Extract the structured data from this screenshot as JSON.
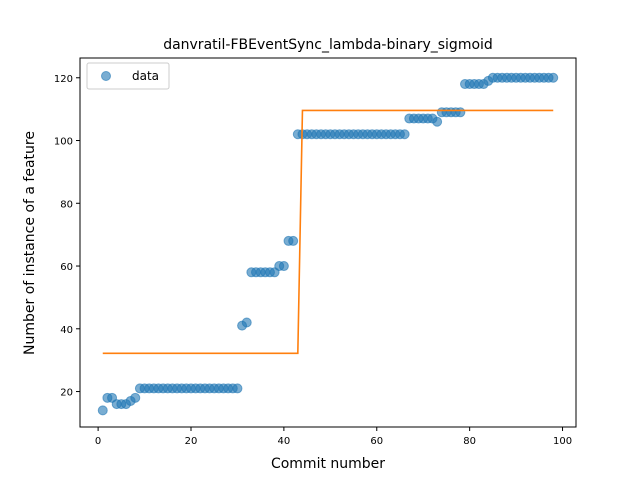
{
  "chart_data": {
    "type": "scatter",
    "title": "danvratil-FBEventSync_lambda-binary_sigmoid",
    "xlabel": "Commit number",
    "ylabel": "Number of instance of a feature",
    "xlim": [
      -3.9,
      102.9
    ],
    "ylim": [
      8.7,
      126.3
    ],
    "xticks": [
      0,
      20,
      40,
      60,
      80,
      100
    ],
    "yticks": [
      20,
      40,
      60,
      80,
      100,
      120
    ],
    "legend": {
      "position": "top-left",
      "entries": [
        "data"
      ]
    },
    "series": [
      {
        "name": "data",
        "kind": "scatter",
        "color": "#1f77b4",
        "x": [
          1,
          2,
          3,
          4,
          5,
          6,
          7,
          8,
          9,
          10,
          11,
          12,
          13,
          14,
          15,
          16,
          17,
          18,
          19,
          20,
          21,
          22,
          23,
          24,
          25,
          26,
          27,
          28,
          29,
          30,
          31,
          32,
          33,
          34,
          35,
          36,
          37,
          38,
          39,
          40,
          41,
          42,
          43,
          44,
          45,
          46,
          47,
          48,
          49,
          50,
          51,
          52,
          53,
          54,
          55,
          56,
          57,
          58,
          59,
          60,
          61,
          62,
          63,
          64,
          65,
          66,
          67,
          68,
          69,
          70,
          71,
          72,
          73,
          74,
          75,
          76,
          77,
          78,
          79,
          80,
          81,
          82,
          83,
          84,
          85,
          86,
          87,
          88,
          89,
          90,
          91,
          92,
          93,
          94,
          95,
          96,
          97,
          98
        ],
        "y": [
          14,
          18,
          18,
          16,
          16,
          16,
          17,
          18,
          21,
          21,
          21,
          21,
          21,
          21,
          21,
          21,
          21,
          21,
          21,
          21,
          21,
          21,
          21,
          21,
          21,
          21,
          21,
          21,
          21,
          21,
          41,
          42,
          58,
          58,
          58,
          58,
          58,
          58,
          60,
          60,
          68,
          68,
          102,
          102,
          102,
          102,
          102,
          102,
          102,
          102,
          102,
          102,
          102,
          102,
          102,
          102,
          102,
          102,
          102,
          102,
          102,
          102,
          102,
          102,
          102,
          102,
          107,
          107,
          107,
          107,
          107,
          107,
          106,
          109,
          109,
          109,
          109,
          109,
          118,
          118,
          118,
          118,
          118,
          119,
          120,
          120,
          120,
          120,
          120,
          120,
          120,
          120,
          120,
          120,
          120,
          120,
          120,
          120
        ]
      },
      {
        "name": "",
        "kind": "line",
        "color": "#ff7f0e",
        "x": [
          1,
          43,
          44,
          98
        ],
        "y": [
          32.2,
          32.2,
          109.6,
          109.6
        ]
      }
    ]
  }
}
